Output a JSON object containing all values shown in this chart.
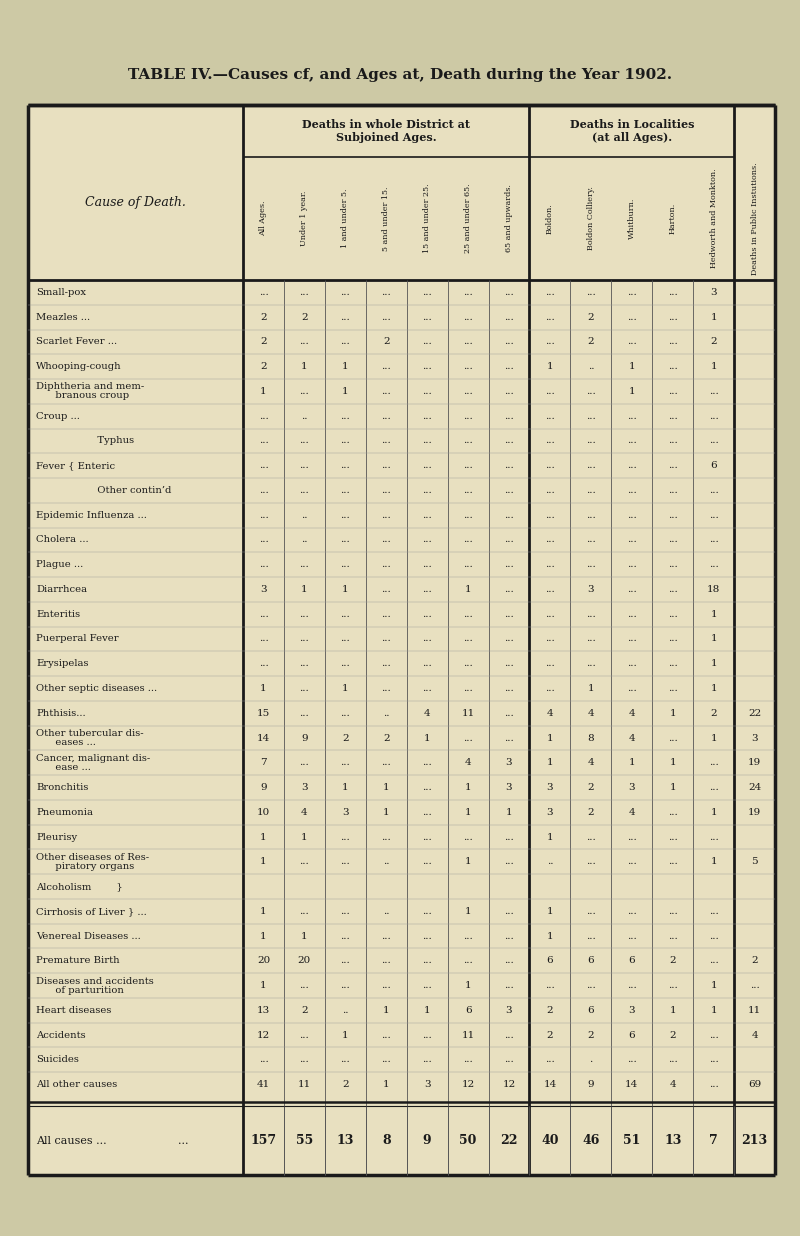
{
  "title": "TABLE IV.—Causes cf, and Ages at, Death during the Year 1902.",
  "bg_color": "#cdc9a5",
  "table_bg": "#e8e0c0",
  "col_headers": [
    "All Ages.",
    "Under 1 year.",
    "1 and under 5.",
    "5 and under 15.",
    "15 and under 25.",
    "25 and under 65.",
    "65 and upwards.",
    "Boldon.",
    "Boldon Colliery.",
    "Whitburn.",
    "Harton.",
    "Hedworth and Monkton.",
    "Deaths in Public Instutions."
  ],
  "rows": [
    {
      "label": "Small-pox",
      "label2": null,
      "ellipsis": "...",
      "vals": [
        "...",
        "...",
        "...",
        "...",
        "...",
        "...",
        "...",
        "...",
        "...",
        "...",
        "...",
        "3"
      ]
    },
    {
      "label": "Meazles ...",
      "label2": null,
      "ellipsis": "...",
      "vals": [
        "2",
        "2",
        "...",
        "...",
        "...",
        "...",
        "...",
        "...",
        "2",
        "...",
        "...",
        "1"
      ]
    },
    {
      "label": "Scarlet Fever ...",
      "label2": null,
      "ellipsis": "...",
      "vals": [
        "2",
        "...",
        "...",
        "2",
        "...",
        "...",
        "...",
        "...",
        "2",
        "...",
        "...",
        "2"
      ]
    },
    {
      "label": "Whooping-cough",
      "label2": null,
      "ellipsis": "...",
      "vals": [
        "2",
        "1",
        "1",
        "...",
        "...",
        "...",
        "...",
        "1",
        "..",
        "1",
        "...",
        "1"
      ]
    },
    {
      "label": "Diphtheria and mem-",
      "label2": "   branous croup",
      "ellipsis": "...",
      "vals": [
        "1",
        "...",
        "1",
        "...",
        "...",
        "...",
        "...",
        "...",
        "...",
        "1",
        "...",
        "..."
      ]
    },
    {
      "label": "Croup ...",
      "label2": null,
      "ellipsis": "...",
      "vals": [
        "...",
        "..",
        "...",
        "...",
        "...",
        "...",
        "...",
        "...",
        "...",
        "...",
        "...",
        "..."
      ]
    },
    {
      "label": "   Typhus",
      "label2": null,
      "ellipsis": "...",
      "fever_sub": true,
      "vals": [
        "...",
        "...",
        "...",
        "...",
        "...",
        "...",
        "...",
        "...",
        "...",
        "...",
        "...",
        "..."
      ]
    },
    {
      "label": "Fever { Enteric",
      "label2": null,
      "ellipsis": "...",
      "fever_main": true,
      "vals": [
        "...",
        "...",
        "...",
        "...",
        "...",
        "...",
        "...",
        "...",
        "...",
        "...",
        "...",
        "6"
      ]
    },
    {
      "label": "   Other contin’d",
      "label2": null,
      "ellipsis": "...",
      "fever_sub": true,
      "vals": [
        "...",
        "...",
        "...",
        "...",
        "...",
        "...",
        "...",
        "...",
        "...",
        "...",
        "...",
        "..."
      ]
    },
    {
      "label": "Epidemic Influenza ...",
      "label2": null,
      "ellipsis": "...",
      "vals": [
        "...",
        "..",
        "...",
        "...",
        "...",
        "...",
        "...",
        "...",
        "...",
        "...",
        "...",
        "..."
      ]
    },
    {
      "label": "Cholera ...",
      "label2": null,
      "ellipsis": "...",
      "vals": [
        "...",
        "..",
        "...",
        "...",
        "...",
        "...",
        "...",
        "...",
        "...",
        "...",
        "...",
        "..."
      ]
    },
    {
      "label": "Plague ...",
      "label2": null,
      "ellipsis": "...",
      "vals": [
        "...",
        "...",
        "...",
        "...",
        "...",
        "...",
        "...",
        "...",
        "...",
        "...",
        "...",
        "..."
      ]
    },
    {
      "label": "Diarrhcea",
      "label2": null,
      "ellipsis": "...",
      "vals": [
        "3",
        "1",
        "1",
        "...",
        "...",
        "1",
        "...",
        "...",
        "3",
        "...",
        "...",
        "18"
      ]
    },
    {
      "label": "Enteritis",
      "label2": null,
      "ellipsis": "...",
      "vals": [
        "...",
        "...",
        "...",
        "...",
        "...",
        "...",
        "...",
        "...",
        "...",
        "...",
        "...",
        "1"
      ]
    },
    {
      "label": "Puerperal Fever",
      "label2": null,
      "ellipsis": "...",
      "vals": [
        "...",
        "...",
        "...",
        "...",
        "...",
        "...",
        "...",
        "...",
        "...",
        "...",
        "...",
        "1"
      ]
    },
    {
      "label": "Erysipelas",
      "label2": null,
      "ellipsis": "...",
      "vals": [
        "...",
        "...",
        "...",
        "...",
        "...",
        "...",
        "...",
        "...",
        "...",
        "...",
        "...",
        "1"
      ]
    },
    {
      "label": "Other septic diseases ...",
      "label2": null,
      "ellipsis": "...",
      "vals": [
        "1",
        "...",
        "1",
        "...",
        "...",
        "...",
        "...",
        "...",
        "1",
        "...",
        "...",
        "1"
      ]
    },
    {
      "label": "Phthisis...",
      "label2": null,
      "ellipsis": "...",
      "vals": [
        "15",
        "...",
        "...",
        "..",
        "4",
        "11",
        "...",
        "4",
        "4",
        "4",
        "1",
        "2",
        "22"
      ]
    },
    {
      "label": "Other tubercular dis-",
      "label2": "   eases ...",
      "ellipsis": "...",
      "vals": [
        "14",
        "9",
        "2",
        "2",
        "1",
        "...",
        "...",
        "1",
        "8",
        "4",
        "...",
        "1",
        "3"
      ]
    },
    {
      "label": "Cancer, malignant dis-",
      "label2": "   ease ...",
      "ellipsis": "...",
      "vals": [
        "7",
        "...",
        "...",
        "...",
        "...",
        "4",
        "3",
        "1",
        "4",
        "1",
        "1",
        "...",
        "19"
      ]
    },
    {
      "label": "Bronchitis",
      "label2": null,
      "ellipsis": "...",
      "vals": [
        "9",
        "3",
        "1",
        "1",
        "...",
        "1",
        "3",
        "3",
        "2",
        "3",
        "1",
        "...",
        "24"
      ]
    },
    {
      "label": "Pneumonia",
      "label2": null,
      "ellipsis": "...",
      "vals": [
        "10",
        "4",
        "3",
        "1",
        "...",
        "1",
        "1",
        "3",
        "2",
        "4",
        "...",
        "1",
        "19"
      ]
    },
    {
      "label": "Pleurisy",
      "label2": null,
      "ellipsis": "...",
      "vals": [
        "1",
        "1",
        "...",
        "...",
        "...",
        "...",
        "...",
        "1",
        "...",
        "...",
        "...",
        "..."
      ]
    },
    {
      "label": "Other diseases of Res-",
      "label2": "   piratory organs",
      "ellipsis": "..",
      "vals": [
        "1",
        "...",
        "...",
        "..",
        "...",
        "1",
        "...",
        "..",
        "...",
        "...",
        "...",
        "1",
        "5"
      ]
    },
    {
      "label": "Alcoholism        }",
      "label2": null,
      "ellipsis": "...",
      "bracket_group": true,
      "vals": [
        "",
        "",
        "",
        "",
        "",
        "",
        "",
        "",
        "",
        "",
        "",
        ""
      ]
    },
    {
      "label": "Cirrhosis of Liver } ...",
      "label2": null,
      "ellipsis": "...",
      "bracket_group": true,
      "vals": [
        "1",
        "...",
        "...",
        "..",
        "...",
        "1",
        "...",
        "1",
        "...",
        "...",
        "...",
        "..."
      ]
    },
    {
      "label": "Venereal Diseases ...",
      "label2": null,
      "ellipsis": "...",
      "vals": [
        "1",
        "1",
        "...",
        "...",
        "...",
        "...",
        "...",
        "1",
        "...",
        "...",
        "...",
        "..."
      ]
    },
    {
      "label": "Premature Birth",
      "label2": null,
      "ellipsis": "...",
      "vals": [
        "20",
        "20",
        "...",
        "...",
        "...",
        "...",
        "...",
        "6",
        "6",
        "6",
        "2",
        "...",
        "2"
      ]
    },
    {
      "label": "Diseases and accidents",
      "label2": "   of parturition",
      "ellipsis": "...",
      "vals": [
        "1",
        "...",
        "...",
        "...",
        "...",
        "1",
        "...",
        "...",
        "...",
        "...",
        "...",
        "1",
        "..."
      ]
    },
    {
      "label": "Heart diseases",
      "label2": null,
      "ellipsis": "...",
      "vals": [
        "13",
        "2",
        "..",
        "1",
        "1",
        "6",
        "3",
        "2",
        "6",
        "3",
        "1",
        "1",
        "11"
      ]
    },
    {
      "label": "Accidents",
      "label2": null,
      "ellipsis": "...",
      "vals": [
        "12",
        "...",
        "1",
        "...",
        "...",
        "11",
        "...",
        "2",
        "2",
        "6",
        "2",
        "...",
        "4"
      ]
    },
    {
      "label": "Suicides",
      "label2": null,
      "ellipsis": "...",
      "vals": [
        "...",
        "...",
        "...",
        "...",
        "...",
        "...",
        "...",
        "...",
        ".",
        "...",
        "...",
        "..."
      ]
    },
    {
      "label": "All other causes",
      "label2": null,
      "ellipsis": "...",
      "vals": [
        "41",
        "11",
        "2",
        "1",
        "3",
        "12",
        "12",
        "14",
        "9",
        "14",
        "4",
        "...",
        "69"
      ]
    }
  ],
  "footer": {
    "label": "All causes ...",
    "ellipsis": "...",
    "vals": [
      "157",
      "55",
      "13",
      "8",
      "9",
      "50",
      "22",
      "40",
      "46",
      "51",
      "13",
      "7",
      "213"
    ]
  }
}
